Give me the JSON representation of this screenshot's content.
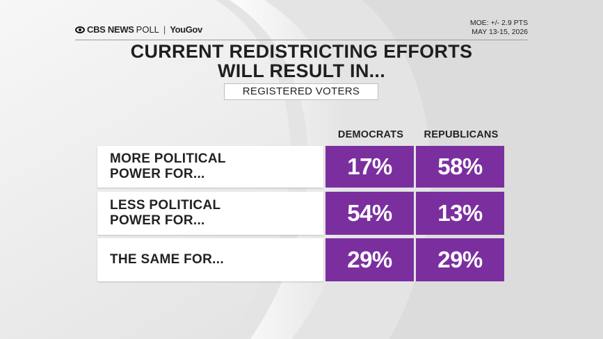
{
  "header": {
    "brand_cbs": "CBS NEWS",
    "brand_poll": "POLL",
    "brand_sep": "|",
    "brand_partner": "YouGov",
    "moe": "MOE: +/- 2.9 PTS",
    "dates": "MAY 13-15, 2026"
  },
  "title_line1": "CURRENT REDISTRICTING EFFORTS",
  "title_line2": "WILL RESULT IN...",
  "subtitle": "REGISTERED VOTERS",
  "colors": {
    "cell_fill": "#7b2f9f",
    "text": "#222222",
    "background": "#eeeeee"
  },
  "chart_data": {
    "type": "table",
    "title": "CURRENT REDISTRICTING EFFORTS WILL RESULT IN...",
    "subtitle": "REGISTERED VOTERS",
    "columns": [
      "DEMOCRATS",
      "REPUBLICANS"
    ],
    "rows": [
      {
        "label_line1": "MORE POLITICAL",
        "label_line2": "POWER FOR...",
        "values": [
          "17%",
          "58%"
        ]
      },
      {
        "label_line1": "LESS POLITICAL",
        "label_line2": "POWER FOR...",
        "values": [
          "54%",
          "13%"
        ]
      },
      {
        "label_line1": "THE SAME FOR...",
        "label_line2": "",
        "values": [
          "29%",
          "29%"
        ]
      }
    ],
    "series": [
      {
        "name": "DEMOCRATS",
        "values": [
          17,
          54,
          29
        ]
      },
      {
        "name": "REPUBLICANS",
        "values": [
          58,
          13,
          29
        ]
      }
    ],
    "unit": "%"
  }
}
